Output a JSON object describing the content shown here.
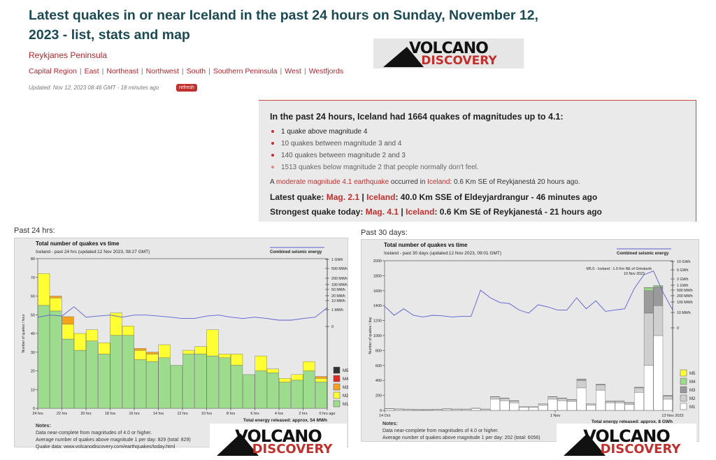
{
  "page": {
    "title": "Latest quakes in or near Iceland in the past 24 hours on Sunday, November 12, 2023 - list, stats and map",
    "region_link": "Reykjanes Peninsula",
    "subregions": [
      "Capital Region",
      "East",
      "Northeast",
      "Northwest",
      "South",
      "Southern Peninsula",
      "West",
      "Westfjords"
    ],
    "updated": "Updated: Nov 12, 2023 08:46 GMT - 18 minutes ago",
    "refresh_label": "refresh"
  },
  "logo": {
    "top": "VOLCANO",
    "bottom": "DISCOVERY"
  },
  "summary": {
    "heading": "In the past 24 hours, Iceland had 1664 quakes of magnitudes up to 4.1:",
    "items": [
      "1 quake above magnitude 4",
      "10 quakes between magnitude 3 and 4",
      "140 quakes between magnitude 2 and 3",
      "1513 quakes below magnitude 2 that people normally don't feel."
    ],
    "moderate_prefix": "A",
    "moderate_link": "moderate magnitude 4.1 earthquake",
    "moderate_mid": "occurred in",
    "moderate_place": "Iceland",
    "moderate_suffix": ": 0.6 Km SE of Reykjanestá 20 hours ago.",
    "latest_label": "Latest quake:",
    "latest_mag": "Mag. 2.1",
    "latest_sep": "|",
    "latest_place": "Iceland",
    "latest_rest": ": 40.0 Km SSE of Eldeyjardrangur - 46 minutes ago",
    "strongest_label": "Strongest quake today:",
    "strongest_mag": "Mag. 4.1",
    "strongest_sep": "|",
    "strongest_place": "Iceland",
    "strongest_rest": ": 0.6 Km SE of Reykjanestá - 21 hours ago"
  },
  "panels": {
    "left_label": "Past 24 hrs:",
    "right_label": "Past 30 days:"
  },
  "colors": {
    "M1": "#9ddc8c",
    "M2": "#ffff33",
    "M3": "#f7a21b",
    "M4": "#e22b1f",
    "M5": "#333333",
    "energy": "#5a5fd0",
    "brand_red": "#c0302d"
  },
  "chart_data": [
    {
      "type": "bar",
      "title": "Total number of quakes vs time",
      "subtitle": "Iceland - past 24 hrs (updated:12 Nov 2023, 08:27 GMT)",
      "legend_energy": "Combined seismic energy",
      "ylabel": "Number of quakes / hour",
      "ylim": [
        0,
        80
      ],
      "yticks": [
        "0",
        "10",
        "20",
        "30",
        "40",
        "50",
        "60",
        "70",
        "80"
      ],
      "xticks": [
        "24 hrs",
        "22 hrs",
        "20 hrs",
        "18 hrs",
        "16 hrs",
        "14 hrs",
        "12 hrs",
        "10 hrs",
        "8 hrs",
        "6 hrs",
        "4 hrs",
        "2 hrs",
        "0 hrs ago"
      ],
      "right_ticks": [
        "1 GWh",
        "500 MWh",
        "200 MWh",
        "100 MWh",
        "50 MWh",
        "20 MWh",
        "10 MWh",
        "1 MWh",
        "0"
      ],
      "legend": [
        "M5",
        "M4",
        "M3",
        "M2",
        "M1"
      ],
      "series": [
        {
          "name": "M1",
          "values": [
            55,
            52,
            37,
            31,
            36,
            29,
            39,
            39,
            26,
            25,
            27,
            23,
            29,
            29,
            28,
            27,
            23,
            18,
            20,
            19,
            14,
            15,
            20,
            14
          ]
        },
        {
          "name": "M2",
          "values": [
            17,
            7,
            8,
            9,
            6,
            6,
            12,
            5,
            5,
            4,
            7,
            0,
            2,
            4,
            14,
            2,
            6,
            0,
            8,
            2,
            2,
            3,
            5,
            2
          ]
        },
        {
          "name": "M3",
          "values": [
            0,
            1,
            4,
            0,
            0,
            0,
            0,
            0,
            1,
            1,
            0,
            0,
            0,
            0,
            0,
            0,
            0,
            0,
            0,
            0,
            0,
            0,
            0,
            1
          ]
        },
        {
          "name": "M4",
          "values": [
            0,
            0,
            0,
            0,
            0,
            0,
            0,
            0,
            0,
            0,
            0,
            0,
            0,
            0,
            0,
            0,
            0,
            0,
            0,
            0,
            0,
            0,
            0,
            0
          ]
        },
        {
          "name": "M5",
          "values": [
            0,
            0,
            0,
            0,
            0,
            0,
            0,
            0,
            0,
            0,
            0,
            0,
            0,
            0,
            0,
            0,
            0,
            0,
            0,
            0,
            0,
            0,
            0,
            0
          ]
        }
      ],
      "energy_line_mwh": [
        0.6,
        0.8,
        0.7,
        2.5,
        0.6,
        0.7,
        0.8,
        0.6,
        0.8,
        0.8,
        0.7,
        0.6,
        0.5,
        0.5,
        0.7,
        0.8,
        0.6,
        0.5,
        0.6,
        0.5,
        0.4,
        0.4,
        0.5,
        0.6,
        2.2
      ],
      "total_energy": "Total energy released: approx. 54 MWh",
      "notes_title": "Notes:",
      "notes": [
        "Data near-complete from magnitudes of 4.0 or higher.",
        "Average number of quakes above magnitude 1 per day: 829 (total: 829)",
        "Quake data: www.volcanodiscovery.com/earthquakes/today.html"
      ]
    },
    {
      "type": "bar",
      "title": "Total number of quakes vs time",
      "subtitle": "Iceland - past 30 days (updated:12 Nov 2023, 09:01 GMT)",
      "legend_energy": "Combined seismic energy",
      "ylabel": "Number of quakes / day",
      "ylim": [
        0,
        2000
      ],
      "yticks": [
        "0",
        "200",
        "400",
        "600",
        "800",
        "1000",
        "1200",
        "1400",
        "1600",
        "1800",
        "2000"
      ],
      "xticks": [
        "14 Oct",
        "1 Nov",
        "13 Nov 2023"
      ],
      "right_ticks": [
        "10 GWh",
        "5 GWh",
        "2 GWh",
        "1 GWh",
        "500 MWh",
        "200 MWh",
        "100 MWh",
        "10 MWh",
        "0"
      ],
      "legend": [
        "M5",
        "M4",
        "M3",
        "M2",
        "M1"
      ],
      "annotation": [
        "M5.0 - Iceland : 1.0 Km NE of Grindavík",
        "10 Nov 2023"
      ],
      "series": [
        {
          "name": "M1",
          "values": [
            20,
            15,
            12,
            10,
            10,
            12,
            18,
            15,
            15,
            25,
            15,
            150,
            130,
            100,
            40,
            40,
            70,
            150,
            130,
            120,
            300,
            70,
            270,
            100,
            100,
            80,
            240,
            600,
            1000,
            150
          ]
        },
        {
          "name": "M2",
          "values": [
            5,
            5,
            3,
            3,
            3,
            3,
            5,
            3,
            3,
            5,
            3,
            30,
            30,
            25,
            10,
            10,
            20,
            30,
            30,
            20,
            100,
            20,
            70,
            20,
            20,
            20,
            60,
            700,
            400,
            40
          ]
        },
        {
          "name": "M3",
          "values": [
            0,
            0,
            0,
            0,
            0,
            0,
            0,
            0,
            0,
            0,
            0,
            5,
            5,
            5,
            0,
            0,
            0,
            5,
            5,
            5,
            20,
            0,
            10,
            5,
            5,
            5,
            10,
            300,
            250,
            10
          ]
        },
        {
          "name": "M4",
          "values": [
            0,
            0,
            0,
            0,
            0,
            0,
            0,
            0,
            0,
            0,
            0,
            0,
            0,
            0,
            0,
            0,
            0,
            0,
            0,
            0,
            0,
            0,
            0,
            0,
            0,
            0,
            0,
            40,
            20,
            0
          ]
        },
        {
          "name": "M5",
          "values": [
            0,
            0,
            0,
            0,
            0,
            0,
            0,
            0,
            0,
            0,
            0,
            0,
            0,
            0,
            0,
            0,
            0,
            0,
            0,
            0,
            0,
            0,
            0,
            0,
            0,
            0,
            0,
            1,
            0,
            0
          ]
        }
      ],
      "energy_line_mwh": [
        50,
        15,
        35,
        15,
        12,
        15,
        14,
        12,
        13,
        13,
        400,
        150,
        80,
        70,
        30,
        20,
        60,
        45,
        30,
        30,
        150,
        35,
        100,
        25,
        30,
        35,
        500,
        3000,
        5000,
        300,
        30
      ],
      "total_energy": "Total energy released: approx. 8 GWh",
      "notes_title": "Notes:",
      "notes": [
        "Data near-complete from magnitudes of 4.0 or higher.",
        "Average number of quakes above magnitude 1 per day: 202 (total: 6056)"
      ]
    }
  ]
}
